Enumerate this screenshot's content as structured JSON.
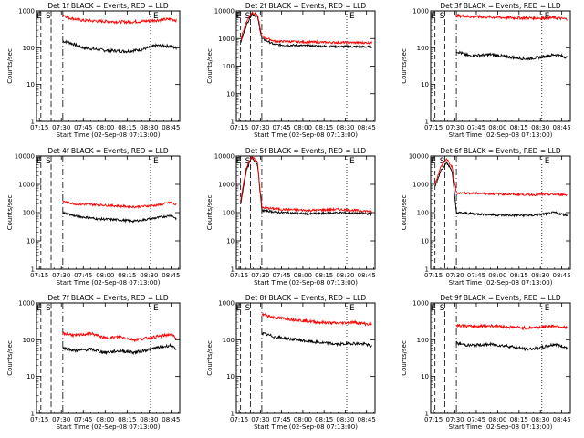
{
  "colors": {
    "events": "#000000",
    "lld": "#ff0000",
    "axes": "#000000"
  },
  "shared": {
    "xlabel": "Start Time (02-Sep-08 07:13:00)",
    "ylabel": "Counts/sec",
    "x_tick_labels": [
      "07:15",
      "07:30",
      "07:45",
      "08:00",
      "08:15",
      "08:30",
      "08:45"
    ],
    "y_tick_labels": [
      "1",
      "10",
      "100",
      "1000"
    ],
    "flag_labels": [
      "E",
      "S",
      "E"
    ],
    "flag_times": {
      "E_start": "07:16",
      "S": "07:23",
      "dash_dot": "07:31",
      "E_end": "08:31"
    }
  },
  "chart_data": [
    {
      "type": "line",
      "title": "Det 1f BLACK = Events, RED = LLD",
      "xlim": [
        "07:13",
        "08:51"
      ],
      "ylim": [
        1,
        1000
      ],
      "yscale": "log",
      "series": [
        {
          "name": "BLACK = Events",
          "x": [
            "07:31",
            "07:35",
            "07:45",
            "08:00",
            "08:15",
            "08:25",
            "08:35",
            "08:45",
            "08:49"
          ],
          "y": [
            150,
            140,
            100,
            85,
            80,
            90,
            115,
            110,
            95
          ]
        },
        {
          "name": "RED = LLD",
          "x": [
            "07:31",
            "07:35",
            "07:45",
            "08:00",
            "08:15",
            "08:25",
            "08:35",
            "08:45",
            "08:49"
          ],
          "y": [
            800,
            650,
            550,
            520,
            500,
            520,
            560,
            600,
            550
          ]
        }
      ]
    },
    {
      "type": "line",
      "title": "Det 2f BLACK = Events, RED = LLD",
      "xlim": [
        "07:13",
        "08:51"
      ],
      "ylim": [
        1,
        10000
      ],
      "yscale": "log",
      "series": [
        {
          "name": "BLACK = Events",
          "x": [
            "07:16",
            "07:20",
            "07:24",
            "07:28",
            "07:31",
            "07:40",
            "08:00",
            "08:20",
            "08:49"
          ],
          "y": [
            700,
            3000,
            8000,
            6000,
            1000,
            600,
            550,
            520,
            500
          ]
        },
        {
          "name": "RED = LLD",
          "x": [
            "07:16",
            "07:20",
            "07:24",
            "07:28",
            "07:31",
            "07:40",
            "08:00",
            "08:20",
            "08:49"
          ],
          "y": [
            900,
            4000,
            9000,
            7000,
            1200,
            800,
            750,
            720,
            700
          ]
        }
      ]
    },
    {
      "type": "line",
      "title": "Det 3f BLACK = Events, RED = LLD",
      "xlim": [
        "07:13",
        "08:51"
      ],
      "ylim": [
        1,
        1000
      ],
      "yscale": "log",
      "series": [
        {
          "name": "BLACK = Events",
          "x": [
            "07:31",
            "07:40",
            "07:55",
            "08:10",
            "08:20",
            "08:30",
            "08:40",
            "08:49"
          ],
          "y": [
            80,
            60,
            65,
            55,
            50,
            55,
            65,
            55
          ]
        },
        {
          "name": "RED = LLD",
          "x": [
            "07:31",
            "07:40",
            "07:55",
            "08:10",
            "08:20",
            "08:30",
            "08:40",
            "08:49"
          ],
          "y": [
            750,
            700,
            680,
            650,
            640,
            640,
            650,
            600
          ]
        }
      ]
    },
    {
      "type": "line",
      "title": "Det 4f BLACK = Events, RED = LLD",
      "xlim": [
        "07:13",
        "08:51"
      ],
      "ylim": [
        1,
        10000
      ],
      "yscale": "log",
      "series": [
        {
          "name": "BLACK = Events",
          "x": [
            "07:31",
            "07:40",
            "07:55",
            "08:10",
            "08:20",
            "08:35",
            "08:45",
            "08:49"
          ],
          "y": [
            100,
            75,
            60,
            55,
            50,
            65,
            80,
            60
          ]
        },
        {
          "name": "RED = LLD",
          "x": [
            "07:31",
            "07:40",
            "07:55",
            "08:10",
            "08:20",
            "08:35",
            "08:45",
            "08:49"
          ],
          "y": [
            250,
            200,
            190,
            170,
            160,
            180,
            230,
            180
          ]
        }
      ]
    },
    {
      "type": "line",
      "title": "Det 5f BLACK = Events, RED = LLD",
      "xlim": [
        "07:13",
        "08:51"
      ],
      "ylim": [
        1,
        10000
      ],
      "yscale": "log",
      "series": [
        {
          "name": "BLACK = Events",
          "x": [
            "07:16",
            "07:20",
            "07:24",
            "07:28",
            "07:31",
            "07:45",
            "08:05",
            "08:25",
            "08:49"
          ],
          "y": [
            200,
            3000,
            9000,
            5000,
            120,
            100,
            90,
            100,
            90
          ]
        },
        {
          "name": "RED = LLD",
          "x": [
            "07:16",
            "07:20",
            "07:24",
            "07:28",
            "07:31",
            "07:45",
            "08:05",
            "08:25",
            "08:49"
          ],
          "y": [
            250,
            4000,
            9500,
            6000,
            150,
            130,
            120,
            130,
            110
          ]
        }
      ]
    },
    {
      "type": "line",
      "title": "Det 6f BLACK = Events, RED = LLD",
      "xlim": [
        "07:13",
        "08:51"
      ],
      "ylim": [
        1,
        10000
      ],
      "yscale": "log",
      "series": [
        {
          "name": "BLACK = Events",
          "x": [
            "07:16",
            "07:20",
            "07:24",
            "07:28",
            "07:31",
            "07:45",
            "08:05",
            "08:25",
            "08:40",
            "08:49"
          ],
          "y": [
            800,
            3000,
            6000,
            3000,
            100,
            90,
            80,
            80,
            100,
            80
          ]
        },
        {
          "name": "RED = LLD",
          "x": [
            "07:16",
            "07:20",
            "07:24",
            "07:28",
            "07:31",
            "07:45",
            "08:05",
            "08:25",
            "08:40",
            "08:49"
          ],
          "y": [
            1000,
            4000,
            8000,
            4000,
            500,
            480,
            450,
            430,
            440,
            430
          ]
        }
      ]
    },
    {
      "type": "line",
      "title": "Det 7f BLACK = Events, RED = LLD",
      "xlim": [
        "07:13",
        "08:51"
      ],
      "ylim": [
        1,
        1000
      ],
      "yscale": "log",
      "series": [
        {
          "name": "BLACK = Events",
          "x": [
            "07:31",
            "07:40",
            "07:50",
            "08:00",
            "08:10",
            "08:20",
            "08:35",
            "08:45",
            "08:49"
          ],
          "y": [
            60,
            50,
            55,
            45,
            50,
            45,
            60,
            70,
            50
          ]
        },
        {
          "name": "RED = LLD",
          "x": [
            "07:31",
            "07:40",
            "07:50",
            "08:00",
            "08:10",
            "08:20",
            "08:35",
            "08:45",
            "08:49"
          ],
          "y": [
            150,
            130,
            150,
            110,
            120,
            100,
            120,
            140,
            110
          ]
        }
      ]
    },
    {
      "type": "line",
      "title": "Det 8f BLACK = Events, RED = LLD",
      "xlim": [
        "07:13",
        "08:51"
      ],
      "ylim": [
        1,
        1000
      ],
      "yscale": "log",
      "series": [
        {
          "name": "BLACK = Events",
          "x": [
            "07:31",
            "07:40",
            "07:55",
            "08:10",
            "08:25",
            "08:35",
            "08:45",
            "08:49"
          ],
          "y": [
            150,
            120,
            100,
            85,
            75,
            80,
            75,
            65
          ]
        },
        {
          "name": "RED = LLD",
          "x": [
            "07:31",
            "07:40",
            "07:55",
            "08:10",
            "08:25",
            "08:35",
            "08:45",
            "08:49"
          ],
          "y": [
            500,
            400,
            350,
            300,
            280,
            300,
            270,
            260
          ]
        }
      ]
    },
    {
      "type": "line",
      "title": "Det 9f BLACK = Events, RED = LLD",
      "xlim": [
        "07:13",
        "08:51"
      ],
      "ylim": [
        1,
        1000
      ],
      "yscale": "log",
      "series": [
        {
          "name": "BLACK = Events",
          "x": [
            "07:31",
            "07:40",
            "07:55",
            "08:10",
            "08:20",
            "08:30",
            "08:40",
            "08:49"
          ],
          "y": [
            80,
            70,
            75,
            65,
            55,
            60,
            75,
            60
          ]
        },
        {
          "name": "RED = LLD",
          "x": [
            "07:31",
            "07:40",
            "07:55",
            "08:10",
            "08:20",
            "08:30",
            "08:40",
            "08:49"
          ],
          "y": [
            250,
            230,
            240,
            220,
            210,
            220,
            240,
            210
          ]
        }
      ]
    }
  ]
}
